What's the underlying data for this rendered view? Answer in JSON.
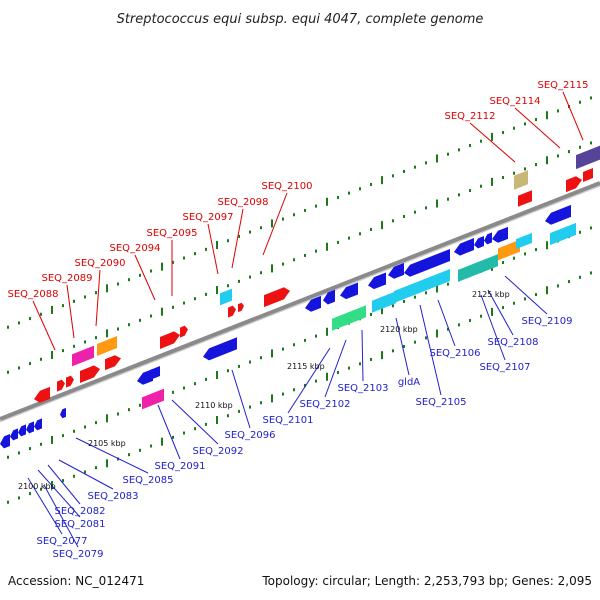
{
  "title": "Streptococcus equi subsp. equi 4047, complete genome",
  "footer": {
    "accession": "Accession: NC_012471",
    "summary": "Topology: circular; Length: 2,253,793 bp; Genes: 2,095"
  },
  "colors": {
    "backbone": "#8a8a8a",
    "tick": "#1a7a1a",
    "red_label": "#dd0000",
    "blue_label": "#2222cc",
    "red": "#ee1111",
    "blue": "#1414dd",
    "magenta": "#ee22aa",
    "orange": "#ff9911",
    "cyan": "#22ccee",
    "teal": "#22bbaa",
    "green": "#33dd88",
    "tan": "#c8b878",
    "purple": "#554499"
  },
  "kbp_ticks": [
    {
      "label": "2100 kbp"
    },
    {
      "label": "2105 kbp"
    },
    {
      "label": "2110 kbp"
    },
    {
      "label": "2115 kbp"
    },
    {
      "label": "2120 kbp"
    },
    {
      "label": "2125 kbp"
    }
  ],
  "top_labels": [
    {
      "text": "SEQ_2115"
    },
    {
      "text": "SEQ_2114"
    },
    {
      "text": "SEQ_2112"
    },
    {
      "text": "SEQ_2100"
    },
    {
      "text": "SEQ_2098"
    },
    {
      "text": "SEQ_2097"
    },
    {
      "text": "SEQ_2095"
    },
    {
      "text": "SEQ_2094"
    },
    {
      "text": "SEQ_2090"
    },
    {
      "text": "SEQ_2089"
    },
    {
      "text": "SEQ_2088"
    }
  ],
  "bottom_labels": [
    {
      "text": "SEQ_2109"
    },
    {
      "text": "SEQ_2108"
    },
    {
      "text": "SEQ_2107"
    },
    {
      "text": "SEQ_2106"
    },
    {
      "text": "SEQ_2105"
    },
    {
      "text": "gldA"
    },
    {
      "text": "SEQ_2103"
    },
    {
      "text": "SEQ_2102"
    },
    {
      "text": "SEQ_2101"
    },
    {
      "text": "SEQ_2096"
    },
    {
      "text": "SEQ_2092"
    },
    {
      "text": "SEQ_2091"
    },
    {
      "text": "SEQ_2085"
    },
    {
      "text": "SEQ_2083"
    },
    {
      "text": "SEQ_2082"
    },
    {
      "text": "SEQ_2081"
    },
    {
      "text": "SEQ_2077"
    },
    {
      "text": "SEQ_2079"
    }
  ]
}
